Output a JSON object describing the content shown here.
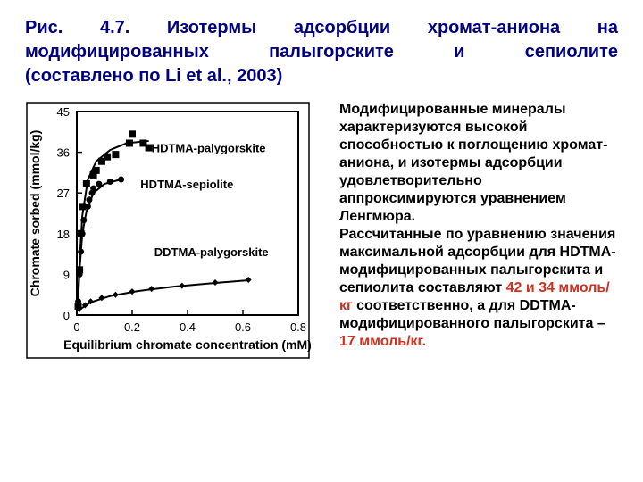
{
  "title": {
    "line1": "Рис. 4.7. Изотермы адсорбции хромат-аниона на",
    "line2": "модифицированных палыгорските и сепиолите",
    "line3": "(составлено по Li et al., 2003)",
    "title_fontsize": 20
  },
  "paragraph": {
    "t1": "Модифицированные минералы характеризуются высокой способностью к поглощению хромат-аниона, и изотермы адсорбции удовлетворительно аппроксимируются уравнением Ленгмюра.",
    "t2": "Рассчитанные по уравнению значения максимальной адсорбции для HDTMA-модифицированных палыгорскита и сепиолита составляют ",
    "hl1": "42 и 34 ммоль/кг",
    "t3": " соответственно, а для DDTMA-модифицированного палыгорскита – ",
    "hl2": "17 ммоль/кг.",
    "fontsize": 16,
    "highlight_color": "#d03020"
  },
  "chart": {
    "type": "scatter_with_curves",
    "xlabel": "Equilibrium chromate concentration (mM)",
    "ylabel": "Chromate sorbed (mmol/kg)",
    "label_fontsize": 14,
    "tick_fontsize": 13,
    "xlim": [
      0,
      0.8
    ],
    "ylim": [
      0,
      45
    ],
    "xticks": [
      0,
      0.2,
      0.4,
      0.6,
      0.8
    ],
    "yticks": [
      0,
      9,
      18,
      27,
      36,
      45
    ],
    "background_color": "#ffffff",
    "axis_color": "#000000",
    "axis_line_width": 2,
    "tick_length": 6,
    "series": [
      {
        "name": "HDTMA-palygorskite",
        "label_xy": [
          0.27,
          36
        ],
        "marker": "square",
        "marker_size": 8,
        "color": "#000000",
        "line_width": 2,
        "points": [
          [
            0.005,
            2
          ],
          [
            0.01,
            10
          ],
          [
            0.015,
            18
          ],
          [
            0.02,
            24
          ],
          [
            0.035,
            29
          ],
          [
            0.06,
            31
          ],
          [
            0.07,
            32
          ],
          [
            0.09,
            34
          ],
          [
            0.11,
            35
          ],
          [
            0.14,
            35.5
          ],
          [
            0.19,
            38
          ],
          [
            0.2,
            40
          ],
          [
            0.24,
            38
          ],
          [
            0.26,
            37
          ]
        ],
        "curve": [
          [
            0.003,
            1
          ],
          [
            0.01,
            12
          ],
          [
            0.02,
            22
          ],
          [
            0.04,
            30
          ],
          [
            0.07,
            34
          ],
          [
            0.12,
            36.5
          ],
          [
            0.18,
            38
          ],
          [
            0.26,
            38.5
          ]
        ]
      },
      {
        "name": "HDTMA-sepiolite",
        "label_xy": [
          0.23,
          28
        ],
        "marker": "circle",
        "marker_size": 7,
        "color": "#000000",
        "line_width": 2,
        "points": [
          [
            0.005,
            3
          ],
          [
            0.01,
            9
          ],
          [
            0.015,
            14
          ],
          [
            0.02,
            18
          ],
          [
            0.025,
            21
          ],
          [
            0.04,
            24
          ],
          [
            0.045,
            25.5
          ],
          [
            0.055,
            27
          ],
          [
            0.06,
            28
          ],
          [
            0.08,
            29
          ],
          [
            0.12,
            29.5
          ],
          [
            0.16,
            30
          ]
        ],
        "curve": [
          [
            0.003,
            1
          ],
          [
            0.01,
            10
          ],
          [
            0.02,
            18
          ],
          [
            0.035,
            23
          ],
          [
            0.06,
            27
          ],
          [
            0.1,
            29
          ],
          [
            0.16,
            30
          ]
        ]
      },
      {
        "name": "DDTMA-palygorskite",
        "label_xy": [
          0.28,
          13
        ],
        "marker": "diamond",
        "marker_size": 7,
        "color": "#000000",
        "line_width": 2,
        "points": [
          [
            0.01,
            1.5
          ],
          [
            0.03,
            2.2
          ],
          [
            0.05,
            3
          ],
          [
            0.09,
            3.8
          ],
          [
            0.14,
            4.5
          ],
          [
            0.2,
            5.2
          ],
          [
            0.27,
            5.8
          ],
          [
            0.38,
            6.5
          ],
          [
            0.5,
            7.2
          ],
          [
            0.62,
            7.8
          ]
        ],
        "curve": [
          [
            0.005,
            1
          ],
          [
            0.05,
            2.8
          ],
          [
            0.12,
            4.2
          ],
          [
            0.22,
            5.3
          ],
          [
            0.35,
            6.3
          ],
          [
            0.5,
            7.1
          ],
          [
            0.62,
            7.7
          ]
        ]
      }
    ]
  }
}
